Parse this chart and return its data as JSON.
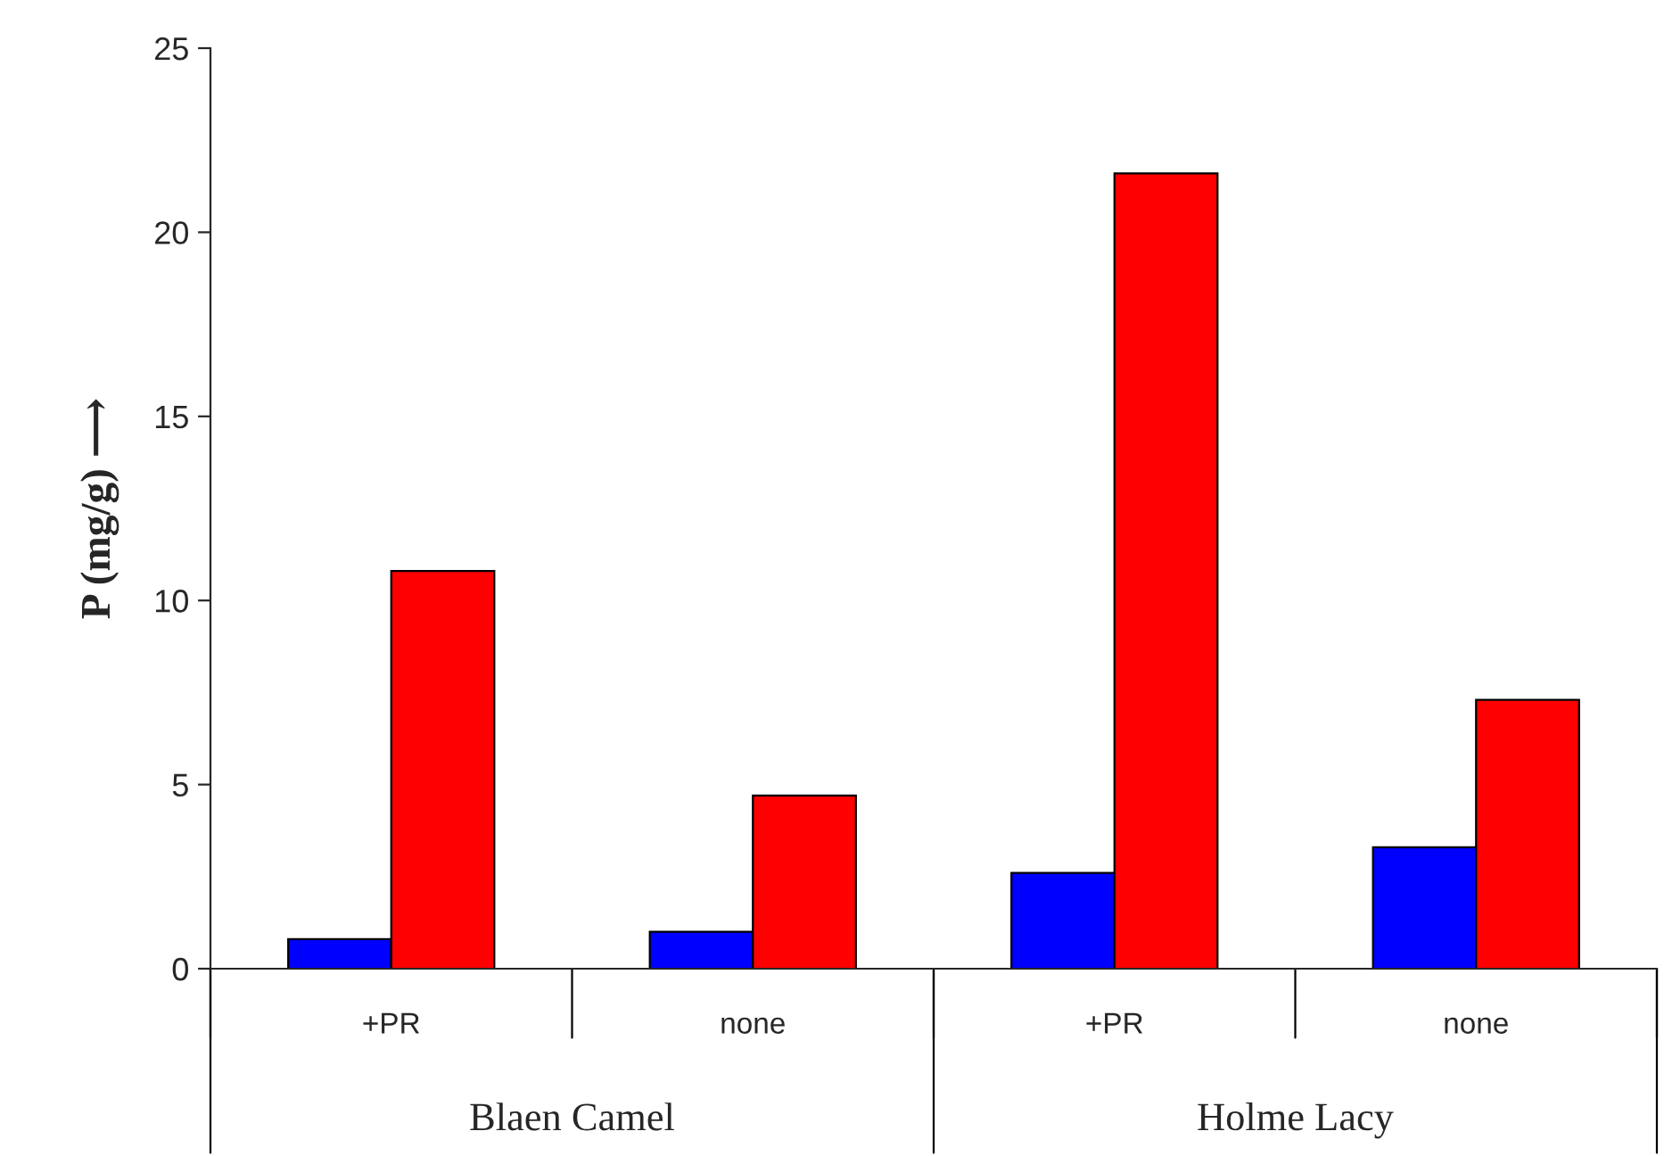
{
  "chart_data": {
    "type": "bar",
    "ylabel": "P (mg/g) ⟶",
    "categories": [
      "+PR",
      "none",
      "+PR",
      "none"
    ],
    "series": [
      {
        "color": "#0000ff",
        "values": [
          0.8,
          1.0,
          2.6,
          3.3
        ]
      },
      {
        "color": "#ff0000",
        "values": [
          10.8,
          4.7,
          21.6,
          7.3
        ]
      }
    ],
    "ylim": [
      0,
      25
    ],
    "yticks": [
      0,
      5,
      10,
      15,
      20,
      25
    ],
    "annotations": [
      "Blaen Camel",
      "Holme Lacy"
    ],
    "grid": false,
    "legend": false
  }
}
